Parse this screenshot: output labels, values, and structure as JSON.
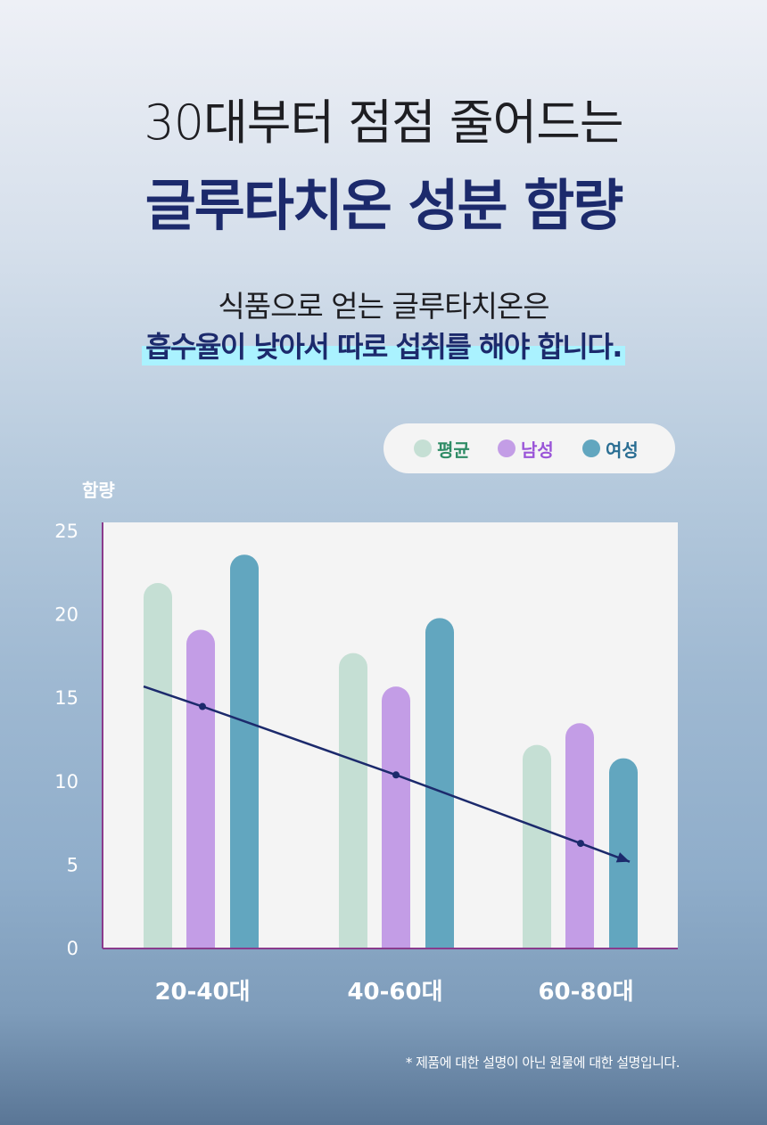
{
  "title_line1": "30대부터 점점 줄어드는",
  "title_line2": "글루타치온 성분 함량",
  "subtitle_line1": "식품으로 얻는 글루타치온은",
  "subtitle_line2": "흡수율이 낮아서 따로 섭취를 해야 합니다.",
  "footnote": "* 제품에 대한 설명이 아닌 원물에 대한 설명입니다.",
  "colors": {
    "title": "#1c2a6c",
    "highlight": "#aaf2ff",
    "trend": "#1c2a6c",
    "axis": "#8a3b8c",
    "plot_bg": "#f4f4f4"
  },
  "chart_data": {
    "type": "bar",
    "ylabel": "함량",
    "xlabel": "",
    "ylim": [
      0,
      25
    ],
    "yticks": [
      "0",
      "5",
      "10",
      "15",
      "20",
      "25"
    ],
    "categories": [
      "20-40대",
      "40-60대",
      "60-80대"
    ],
    "series": [
      {
        "name": "평균",
        "color": "#c5dfd4",
        "label_color": "#2f8c66",
        "values": [
          21.9,
          17.7,
          12.2
        ]
      },
      {
        "name": "남성",
        "color": "#c39de6",
        "label_color": "#9a55d8",
        "values": [
          19.1,
          15.7,
          13.5
        ]
      },
      {
        "name": "여성",
        "color": "#62a6bf",
        "label_color": "#2a6e93",
        "values": [
          23.6,
          19.8,
          11.4
        ]
      }
    ],
    "trend_line": {
      "values": [
        15.7,
        14.5,
        10.4,
        6.3,
        5.2
      ]
    },
    "grid": false,
    "legend_position": "top-right"
  }
}
